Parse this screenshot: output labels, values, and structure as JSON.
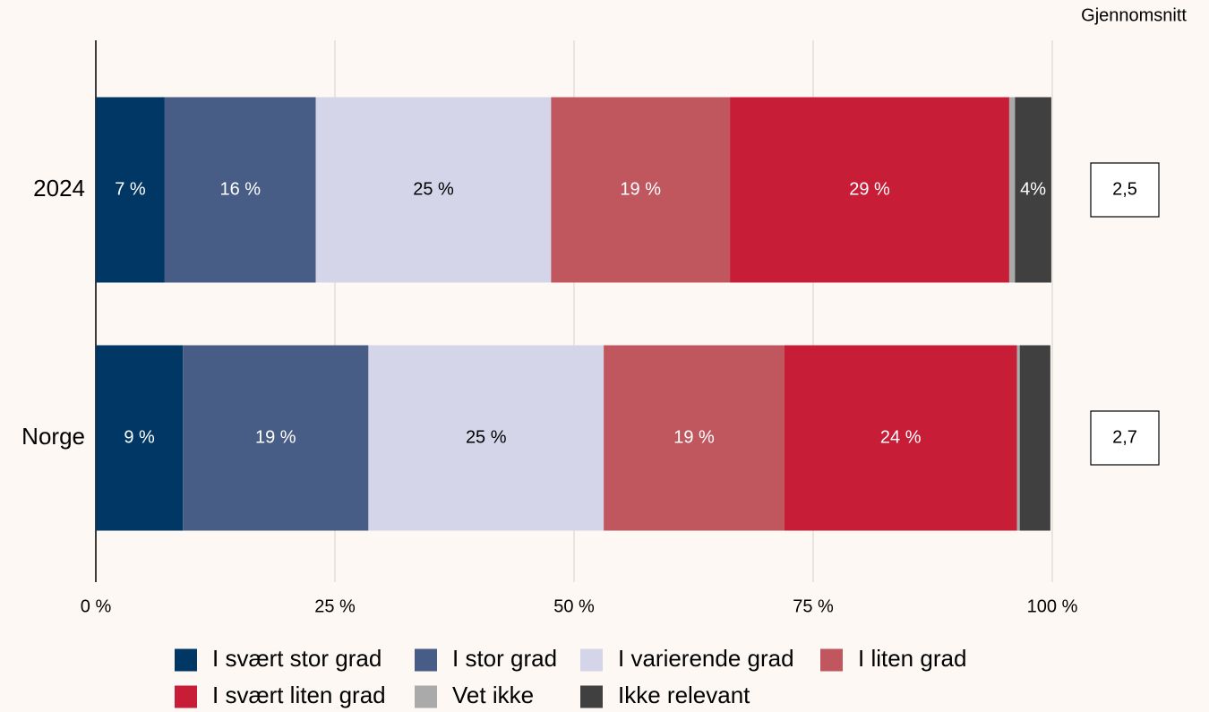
{
  "chart_data": {
    "type": "stacked-bar-horizontal",
    "categories": [
      "2024",
      "Norge"
    ],
    "series": [
      {
        "name": "I svært stor grad",
        "color": "#003764",
        "values": [
          7.2,
          9.1
        ],
        "value_labels": [
          "7 %",
          "9 %"
        ]
      },
      {
        "name": "I stor grad",
        "color": "#475d85",
        "values": [
          15.8,
          19.4
        ],
        "value_labels": [
          "16 %",
          "19 %"
        ]
      },
      {
        "name": "I varierende grad",
        "color": "#d5d5ea",
        "values": [
          24.6,
          24.6
        ],
        "value_labels": [
          "25 %",
          "25 %"
        ]
      },
      {
        "name": "I liten grad",
        "color": "#c0575f",
        "values": [
          18.7,
          18.9
        ],
        "value_labels": [
          "19 %",
          "19 %"
        ]
      },
      {
        "name": "I svært liten grad",
        "color": "#c71d37",
        "values": [
          29.2,
          24.3
        ],
        "value_labels": [
          "29 %",
          "24 %"
        ]
      },
      {
        "name": "Vet ikke",
        "color": "#aaaaaa",
        "values": [
          0.6,
          0.3
        ],
        "value_labels": [
          null,
          null
        ]
      },
      {
        "name": "Ikke relevant",
        "color": "#404040",
        "values": [
          3.8,
          3.2
        ],
        "value_labels": [
          "4%",
          null
        ]
      }
    ],
    "xlim": [
      0,
      100
    ],
    "xticks": [
      {
        "value": 0,
        "label": "0 %"
      },
      {
        "value": 25,
        "label": "25 %"
      },
      {
        "value": 50,
        "label": "50 %"
      },
      {
        "value": 75,
        "label": "75 %"
      },
      {
        "value": 100,
        "label": "100 %"
      }
    ],
    "grid": true,
    "averages": {
      "title": "Gjennomsnitt",
      "values": [
        2.5,
        2.7
      ],
      "labels": [
        "2,5",
        "2,7"
      ]
    }
  }
}
